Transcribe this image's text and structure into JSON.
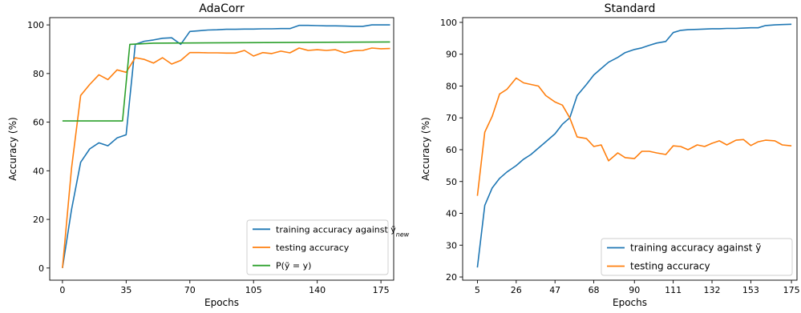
{
  "chart_data": [
    {
      "type": "line",
      "title": "AdaCorr",
      "xlabel": "Epochs",
      "ylabel": "Accuracy (%)",
      "xlim": [
        -7,
        182
      ],
      "ylim": [
        -5,
        103
      ],
      "xticks": [
        0,
        35,
        70,
        105,
        140,
        175
      ],
      "yticks": [
        0,
        20,
        40,
        60,
        80,
        100
      ],
      "grid": false,
      "legend_position": "lower-right",
      "series": [
        {
          "name": "training accuracy against ỹ",
          "name_sub": "new",
          "color": "#1f77b4",
          "x": [
            0,
            5,
            10,
            15,
            20,
            25,
            30,
            35,
            40,
            45,
            50,
            55,
            60,
            65,
            70,
            75,
            80,
            85,
            90,
            95,
            100,
            105,
            110,
            115,
            120,
            125,
            130,
            135,
            140,
            145,
            150,
            155,
            160,
            165,
            170,
            175,
            180
          ],
          "y": [
            0,
            24,
            43.5,
            49,
            51.5,
            50.3,
            53.5,
            54.8,
            92,
            93.3,
            93.8,
            94.5,
            94.7,
            92,
            97.3,
            97.6,
            97.9,
            98,
            98.2,
            98.2,
            98.3,
            98.3,
            98.4,
            98.4,
            98.5,
            98.5,
            99.8,
            99.8,
            99.7,
            99.6,
            99.6,
            99.5,
            99.4,
            99.4,
            100,
            100,
            100
          ]
        },
        {
          "name": "testing accuracy",
          "color": "#ff7f0e",
          "x": [
            0,
            5,
            10,
            15,
            20,
            25,
            30,
            35,
            40,
            45,
            50,
            55,
            60,
            65,
            70,
            75,
            80,
            85,
            90,
            95,
            100,
            105,
            110,
            115,
            120,
            125,
            130,
            135,
            140,
            145,
            150,
            155,
            160,
            165,
            170,
            175,
            180
          ],
          "y": [
            0,
            41,
            71,
            75.5,
            79.5,
            77.5,
            81.5,
            80.5,
            86.5,
            85.8,
            84.3,
            86.5,
            83.9,
            85.4,
            88.6,
            88.6,
            88.5,
            88.5,
            88.4,
            88.4,
            89.5,
            87.2,
            88.6,
            88.2,
            89.2,
            88.5,
            90.5,
            89.5,
            89.8,
            89.5,
            89.8,
            88.5,
            89.4,
            89.5,
            90.5,
            90.2,
            90.3
          ]
        },
        {
          "name": "P(ỹ = y)",
          "color": "#2ca02c",
          "x": [
            0,
            33,
            37,
            50,
            180
          ],
          "y": [
            60.5,
            60.5,
            92,
            92.5,
            93
          ]
        }
      ]
    },
    {
      "type": "line",
      "title": "Standard",
      "xlabel": "Epochs",
      "ylabel": "Accuracy (%)",
      "xlim": [
        -3,
        178
      ],
      "ylim": [
        19,
        101.5
      ],
      "xticks": [
        5,
        26,
        47,
        68,
        90,
        111,
        132,
        153,
        175
      ],
      "yticks": [
        20,
        30,
        40,
        50,
        60,
        70,
        80,
        90,
        100
      ],
      "grid": false,
      "legend_position": "lower-right",
      "series": [
        {
          "name": "training accuracy against ỹ",
          "color": "#1f77b4",
          "x": [
            5,
            9,
            13,
            17,
            21,
            26,
            30,
            34,
            38,
            42,
            47,
            51,
            55,
            59,
            64,
            68,
            72,
            76,
            81,
            85,
            90,
            94,
            98,
            102,
            107,
            111,
            115,
            119,
            124,
            128,
            132,
            136,
            140,
            145,
            149,
            153,
            157,
            161,
            166,
            170,
            175
          ],
          "y": [
            23,
            42.5,
            48,
            51,
            53,
            55,
            57,
            58.5,
            60.5,
            62.5,
            65,
            68,
            70,
            77,
            80.5,
            83.5,
            85.5,
            87.5,
            89,
            90.5,
            91.5,
            92,
            92.8,
            93.5,
            94,
            96.8,
            97.5,
            97.7,
            97.8,
            97.9,
            98,
            98,
            98.1,
            98.1,
            98.2,
            98.3,
            98.3,
            99,
            99.2,
            99.3,
            99.4
          ]
        },
        {
          "name": "testing accuracy",
          "color": "#ff7f0e",
          "x": [
            5,
            9,
            13,
            17,
            21,
            26,
            30,
            34,
            38,
            42,
            47,
            51,
            55,
            59,
            64,
            68,
            72,
            76,
            81,
            85,
            90,
            94,
            98,
            102,
            107,
            111,
            115,
            119,
            124,
            128,
            132,
            136,
            140,
            145,
            149,
            153,
            157,
            161,
            166,
            170,
            175
          ],
          "y": [
            45.5,
            65.5,
            70.5,
            77.5,
            79,
            82.5,
            81,
            80.5,
            80,
            77,
            75,
            74,
            70,
            64,
            63.5,
            61,
            61.5,
            56.5,
            59,
            57.5,
            57.2,
            59.5,
            59.5,
            59,
            58.5,
            61.2,
            61,
            60,
            61.5,
            61,
            62,
            62.8,
            61.5,
            63,
            63.2,
            61.3,
            62.5,
            63,
            62.8,
            61.5,
            61.2
          ]
        }
      ]
    }
  ]
}
